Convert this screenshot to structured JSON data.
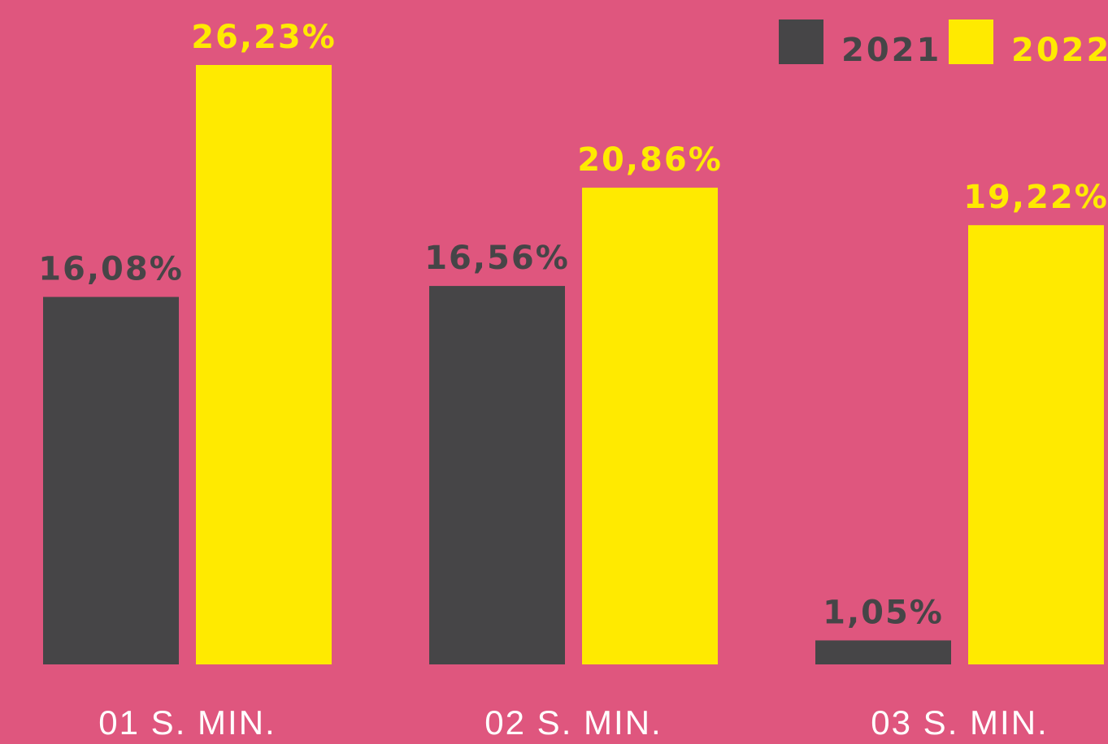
{
  "chart_data": {
    "type": "bar",
    "categories": [
      "01 S. MIN.",
      "02 S. MIN.",
      "03 S. MIN."
    ],
    "series": [
      {
        "name": "2021",
        "color": "#464547",
        "values": [
          16.08,
          16.56,
          1.05
        ],
        "value_labels": [
          "16,08%",
          "16,56%",
          "1,05%"
        ]
      },
      {
        "name": "2022",
        "color": "#ffea00",
        "values": [
          26.23,
          20.86,
          19.22
        ],
        "value_labels": [
          "26,23%",
          "20,86%",
          "19,22%"
        ]
      }
    ],
    "legend": "top-right"
  }
}
